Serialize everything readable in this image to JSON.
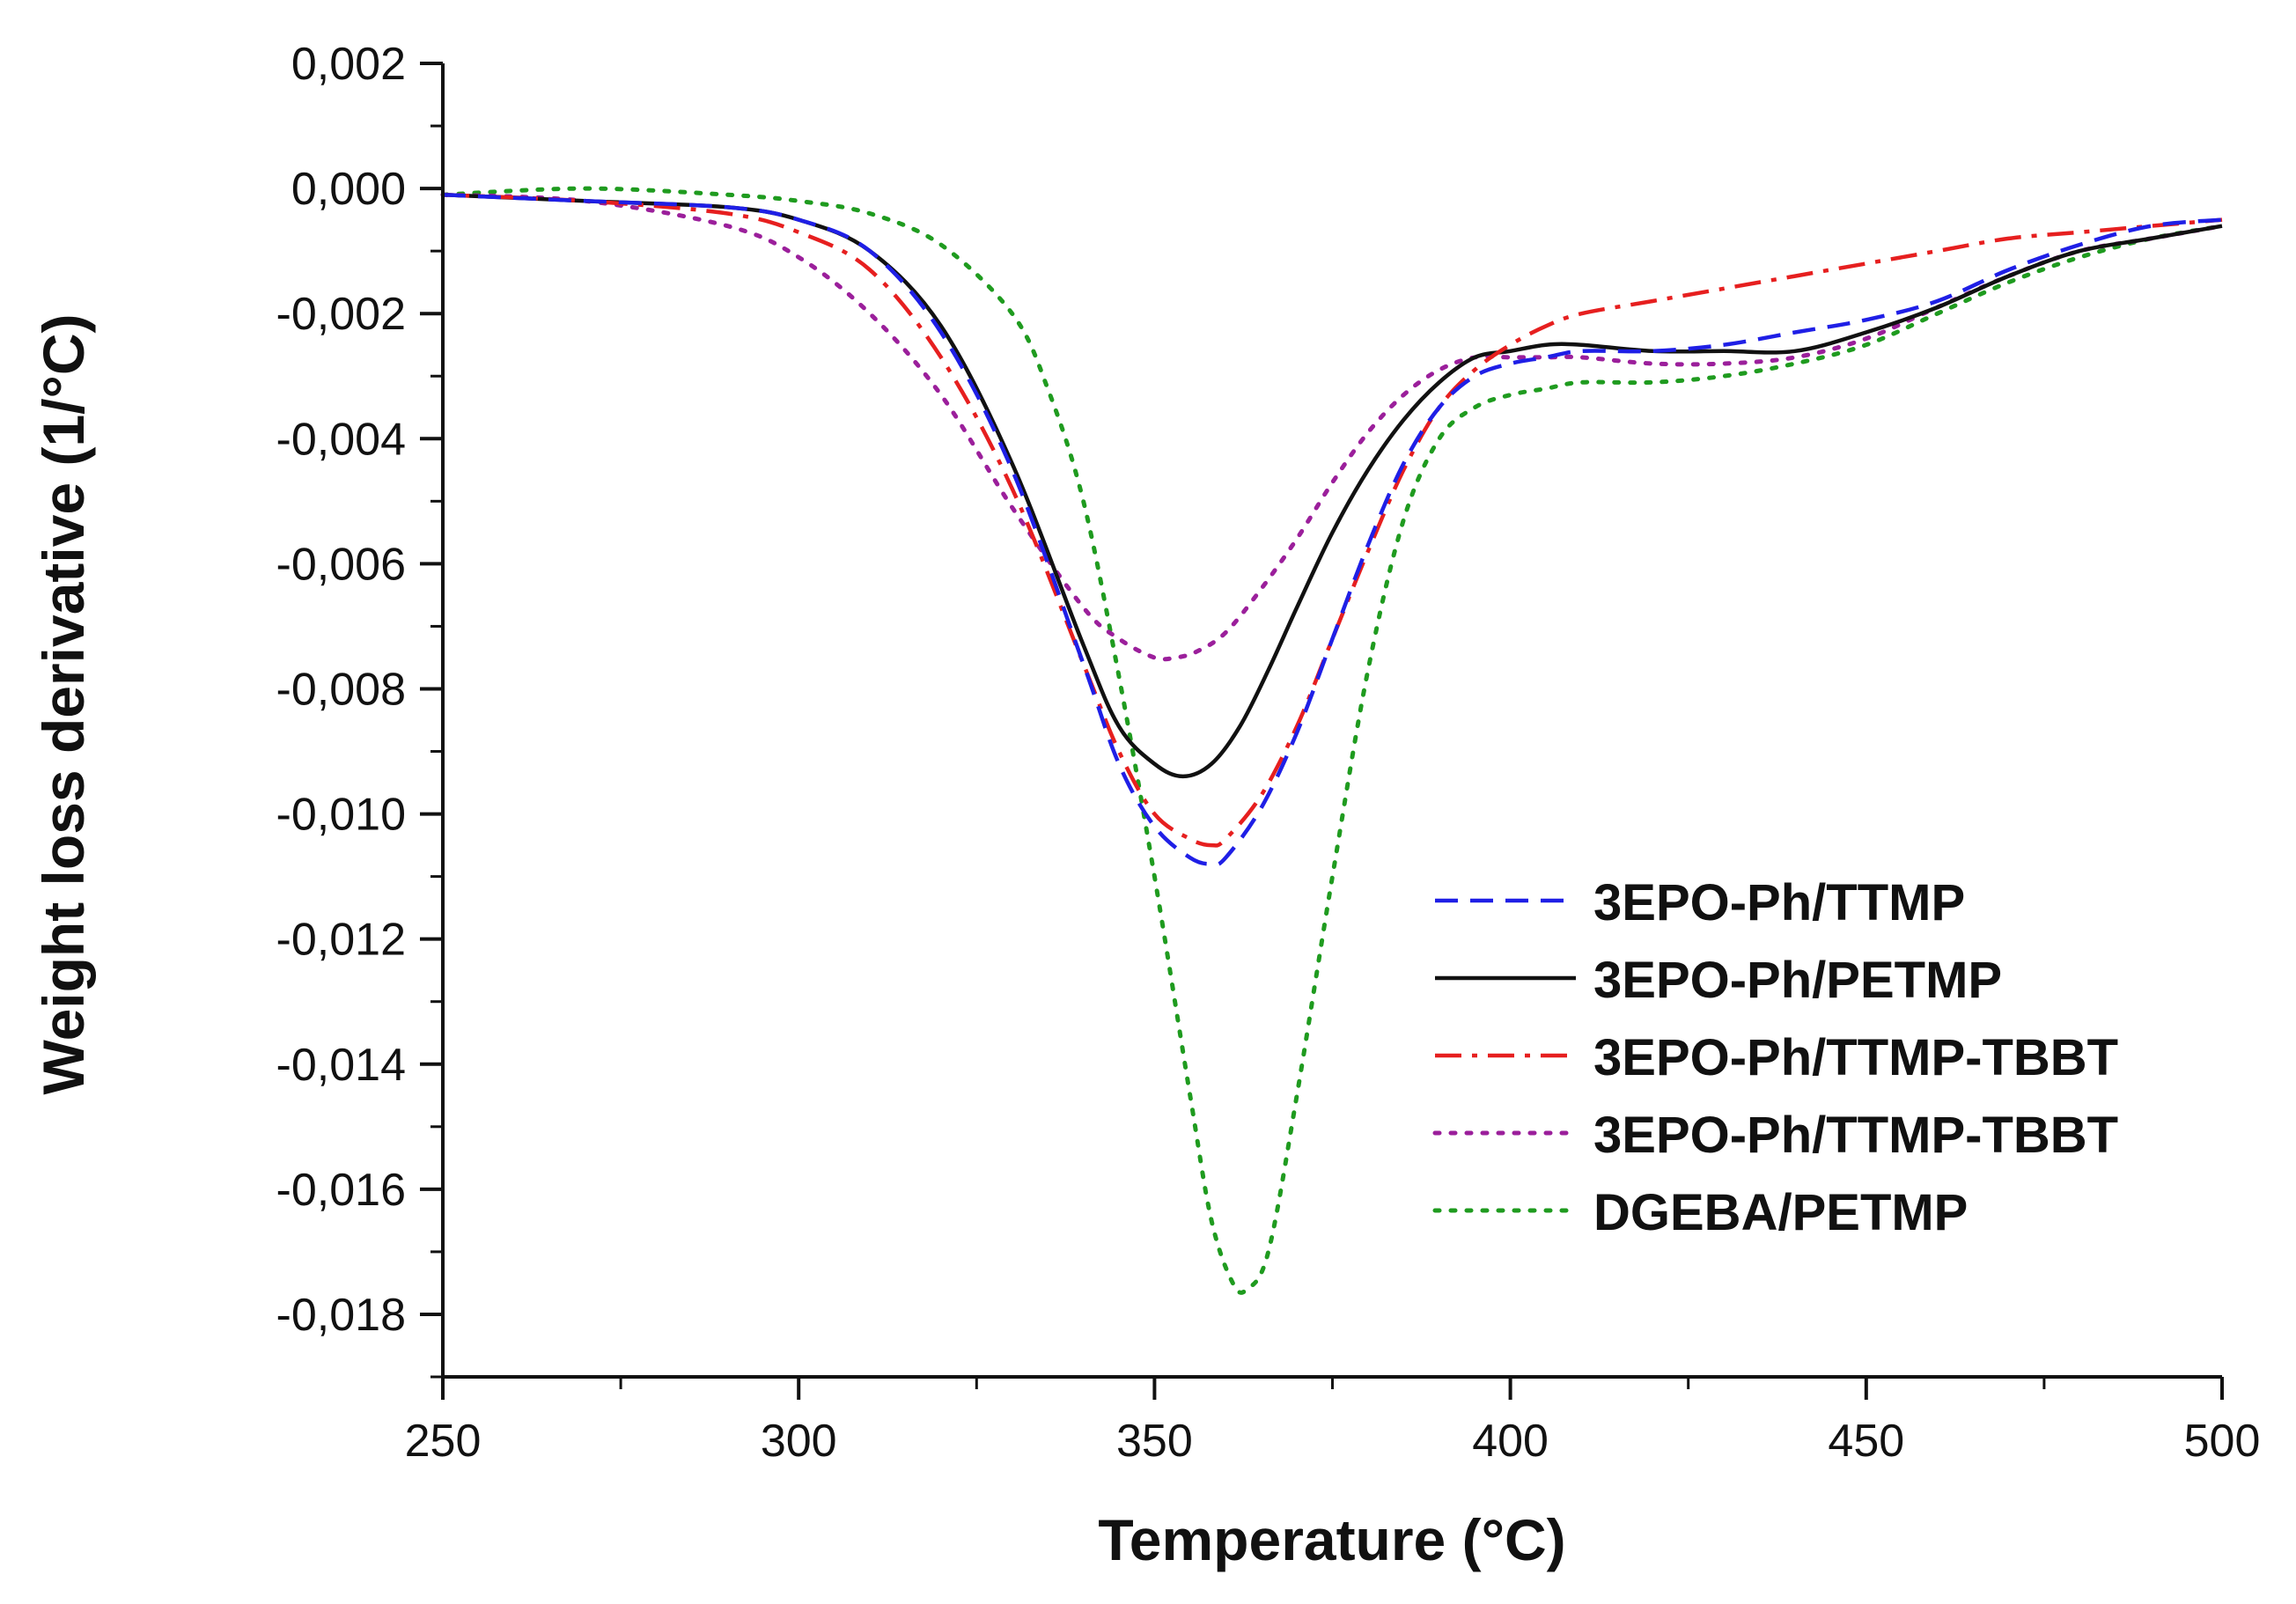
{
  "chart_data": {
    "type": "line",
    "title": "",
    "xlabel": "Temperature (°C)",
    "ylabel": "Weight loss derivative (1/°C)",
    "xlim": [
      250,
      500
    ],
    "ylim": [
      -0.019,
      0.002
    ],
    "x_ticks": [
      250,
      300,
      350,
      400,
      450,
      500
    ],
    "x_tick_labels": [
      "250",
      "300",
      "350",
      "400",
      "450",
      "500"
    ],
    "y_ticks": [
      0.002,
      0.0,
      -0.002,
      -0.004,
      -0.006,
      -0.008,
      -0.01,
      -0.012,
      -0.014,
      -0.016,
      -0.018
    ],
    "y_tick_labels": [
      "0,002",
      "0,000",
      "-0,002",
      "-0,004",
      "-0,006",
      "-0,008",
      "-0,010",
      "-0,012",
      "-0,014",
      "-0,016",
      "-0,018"
    ],
    "grid": false,
    "legend_position": "lower-right",
    "series": [
      {
        "name": "3EPO-Ph/TTMP",
        "color": "#1f1fe6",
        "style": "dashed",
        "x": [
          250,
          270,
          290,
          300,
          310,
          320,
          330,
          340,
          345,
          350,
          355,
          358,
          360,
          365,
          370,
          375,
          380,
          385,
          390,
          395,
          400,
          405,
          410,
          420,
          430,
          440,
          450,
          460,
          470,
          480,
          490,
          500
        ],
        "y": [
          -0.0001,
          -0.0002,
          -0.0003,
          -0.0005,
          -0.001,
          -0.0023,
          -0.0045,
          -0.0076,
          -0.0092,
          -0.0102,
          -0.0107,
          -0.0108,
          -0.0107,
          -0.0099,
          -0.0087,
          -0.0072,
          -0.0057,
          -0.0044,
          -0.0035,
          -0.003,
          -0.0028,
          -0.0027,
          -0.0026,
          -0.0026,
          -0.0025,
          -0.0023,
          -0.0021,
          -0.0018,
          -0.0013,
          -0.0009,
          -0.0006,
          -0.0005
        ]
      },
      {
        "name": "3EPO-Ph/PETMP",
        "color": "#111111",
        "style": "solid",
        "x": [
          250,
          270,
          290,
          300,
          310,
          320,
          330,
          340,
          345,
          350,
          354,
          358,
          362,
          366,
          370,
          375,
          380,
          385,
          390,
          395,
          400,
          405,
          410,
          420,
          430,
          440,
          450,
          460,
          470,
          480,
          490,
          500
        ],
        "y": [
          -0.0001,
          -0.0002,
          -0.0003,
          -0.0005,
          -0.001,
          -0.0022,
          -0.0044,
          -0.0073,
          -0.0086,
          -0.0092,
          -0.0094,
          -0.0092,
          -0.0086,
          -0.0077,
          -0.0067,
          -0.0055,
          -0.0045,
          -0.0037,
          -0.0031,
          -0.0027,
          -0.0026,
          -0.0025,
          -0.0025,
          -0.0026,
          -0.0026,
          -0.0026,
          -0.0023,
          -0.0019,
          -0.0014,
          -0.001,
          -0.0008,
          -0.0006
        ]
      },
      {
        "name": "3EPO-Ph/TTMP-TBBT",
        "color": "#e61f1f",
        "style": "dashdot",
        "x": [
          250,
          270,
          290,
          300,
          310,
          320,
          330,
          340,
          345,
          350,
          355,
          358,
          360,
          365,
          370,
          375,
          380,
          385,
          390,
          395,
          400,
          405,
          410,
          420,
          430,
          440,
          450,
          460,
          470,
          480,
          490,
          500
        ],
        "y": [
          -0.0001,
          -0.0002,
          -0.0004,
          -0.0007,
          -0.0013,
          -0.0027,
          -0.0048,
          -0.0076,
          -0.009,
          -0.01,
          -0.0104,
          -0.0105,
          -0.0104,
          -0.0097,
          -0.0086,
          -0.0072,
          -0.0058,
          -0.0045,
          -0.0035,
          -0.0029,
          -0.0025,
          -0.0022,
          -0.002,
          -0.0018,
          -0.0016,
          -0.0014,
          -0.0012,
          -0.001,
          -0.0008,
          -0.0007,
          -0.0006,
          -0.0005
        ]
      },
      {
        "name": "3EPO-Ph/TTMP-TBBT",
        "color": "#9b1f9b",
        "style": "dotted",
        "x": [
          250,
          270,
          290,
          300,
          310,
          320,
          330,
          340,
          345,
          350,
          353,
          356,
          360,
          365,
          370,
          375,
          380,
          385,
          390,
          395,
          400,
          405,
          410,
          420,
          430,
          440,
          450,
          460,
          470,
          480,
          490,
          500
        ],
        "y": [
          -0.0001,
          -0.0002,
          -0.0006,
          -0.0011,
          -0.002,
          -0.0033,
          -0.0051,
          -0.0067,
          -0.0072,
          -0.0075,
          -0.0075,
          -0.0074,
          -0.0071,
          -0.0064,
          -0.0056,
          -0.0047,
          -0.0039,
          -0.0033,
          -0.0029,
          -0.0027,
          -0.0027,
          -0.0027,
          -0.0027,
          -0.0028,
          -0.0028,
          -0.0027,
          -0.0024,
          -0.0019,
          -0.0014,
          -0.001,
          -0.0008,
          -0.0006
        ]
      },
      {
        "name": "DGEBA/PETMP",
        "color": "#1f9b1f",
        "style": "dotted",
        "x": [
          250,
          270,
          290,
          300,
          310,
          320,
          330,
          335,
          340,
          345,
          350,
          355,
          358,
          361,
          363,
          366,
          370,
          375,
          380,
          385,
          390,
          395,
          400,
          405,
          410,
          420,
          430,
          440,
          450,
          460,
          470,
          480,
          490,
          500
        ],
        "y": [
          -0.0001,
          -0.0,
          -0.0001,
          -0.0002,
          -0.0004,
          -0.0009,
          -0.002,
          -0.0032,
          -0.005,
          -0.0078,
          -0.011,
          -0.0145,
          -0.0165,
          -0.0175,
          -0.0176,
          -0.017,
          -0.0145,
          -0.011,
          -0.0077,
          -0.0053,
          -0.004,
          -0.0035,
          -0.0033,
          -0.0032,
          -0.0031,
          -0.0031,
          -0.003,
          -0.0028,
          -0.0025,
          -0.002,
          -0.0015,
          -0.0011,
          -0.0008,
          -0.0006
        ]
      }
    ]
  }
}
